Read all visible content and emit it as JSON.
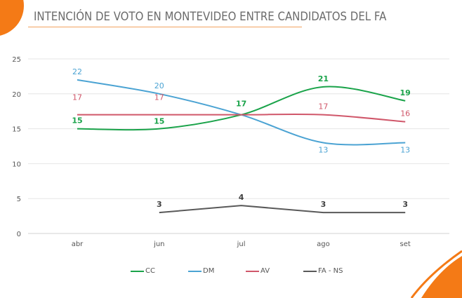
{
  "title": "INTENCIÓN DE VOTO EN MONTEVIDEO ENTRE CANDIDATOS DEL FA",
  "chart_data": {
    "type": "line",
    "categories": [
      "abr",
      "jun",
      "jul",
      "ago",
      "set"
    ],
    "ylim": [
      0,
      25
    ],
    "yticks": [
      0,
      5,
      10,
      15,
      20,
      25
    ],
    "grid": true,
    "legend": "bottom",
    "series": [
      {
        "name": "CC",
        "color": "#1aa34a",
        "values": [
          15,
          15,
          17,
          21,
          19
        ]
      },
      {
        "name": "DM",
        "color": "#4ba3d3",
        "values": [
          22,
          20,
          17,
          13,
          13
        ]
      },
      {
        "name": "AV",
        "color": "#d0576a",
        "values": [
          17,
          17,
          17,
          17,
          16
        ]
      },
      {
        "name": "FA - NS",
        "color": "#595959",
        "values": [
          null,
          3,
          4,
          3,
          3
        ]
      }
    ]
  }
}
